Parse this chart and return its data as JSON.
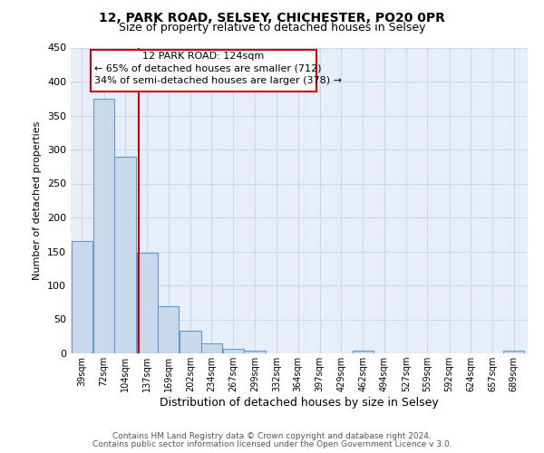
{
  "title_line1": "12, PARK ROAD, SELSEY, CHICHESTER, PO20 0PR",
  "title_line2": "Size of property relative to detached houses in Selsey",
  "xlabel": "Distribution of detached houses by size in Selsey",
  "ylabel": "Number of detached properties",
  "footer_line1": "Contains HM Land Registry data © Crown copyright and database right 2024.",
  "footer_line2": "Contains public sector information licensed under the Open Government Licence v 3.0.",
  "bin_labels": [
    "39sqm",
    "72sqm",
    "104sqm",
    "137sqm",
    "169sqm",
    "202sqm",
    "234sqm",
    "267sqm",
    "299sqm",
    "332sqm",
    "364sqm",
    "397sqm",
    "429sqm",
    "462sqm",
    "494sqm",
    "527sqm",
    "559sqm",
    "592sqm",
    "624sqm",
    "657sqm",
    "689sqm"
  ],
  "bar_heights": [
    165,
    375,
    290,
    148,
    70,
    33,
    15,
    7,
    4,
    0,
    0,
    0,
    0,
    4,
    0,
    0,
    0,
    0,
    0,
    0,
    4
  ],
  "bar_color": "#c8d9ec",
  "bar_edge_color": "#6699cc",
  "grid_color": "#c8d9ec",
  "background_color": "#e8eef8",
  "vline_x": 124,
  "vline_color": "#cc0000",
  "annotation_box_color": "#cc0000",
  "annotation_text_line1": "12 PARK ROAD: 124sqm",
  "annotation_text_line2": "← 65% of detached houses are smaller (712)",
  "annotation_text_line3": "34% of semi-detached houses are larger (378) →",
  "ylim": [
    0,
    450
  ],
  "bin_centers": [
    39,
    72,
    104,
    137,
    169,
    202,
    234,
    267,
    299,
    332,
    364,
    397,
    429,
    462,
    494,
    527,
    559,
    592,
    624,
    657,
    689
  ],
  "bin_width": 33
}
